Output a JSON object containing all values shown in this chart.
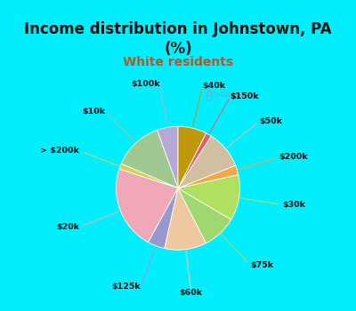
{
  "title": "Income distribution in Johnstown, PA\n(%)",
  "subtitle": "White residents",
  "title_color": "#111111",
  "subtitle_color": "#b05a2a",
  "background_color": "#00eeff",
  "chart_bg_color": "#e0f5e8",
  "labels": [
    "$100k",
    "$10k",
    "> $200k",
    "$20k",
    "$125k",
    "$60k",
    "$75k",
    "$30k",
    "$200k",
    "$50k",
    "$150k",
    "$40k"
  ],
  "sizes": [
    5.5,
    13.0,
    1.5,
    22.0,
    4.5,
    11.0,
    9.0,
    12.0,
    2.5,
    10.0,
    1.5,
    7.5
  ],
  "colors": [
    "#b8a8d8",
    "#a0c890",
    "#d8d050",
    "#f0a8b8",
    "#9898d0",
    "#f0c8a0",
    "#a0d870",
    "#b0e060",
    "#f0a848",
    "#d0c0a0",
    "#e06070",
    "#c0980c"
  ],
  "startangle": 90,
  "label_colors": [
    "#333333",
    "#333333",
    "#333333",
    "#333333",
    "#333333",
    "#333333",
    "#333333",
    "#333333",
    "#333333",
    "#333333",
    "#333333",
    "#333333"
  ],
  "watermark": "City-Data.com"
}
